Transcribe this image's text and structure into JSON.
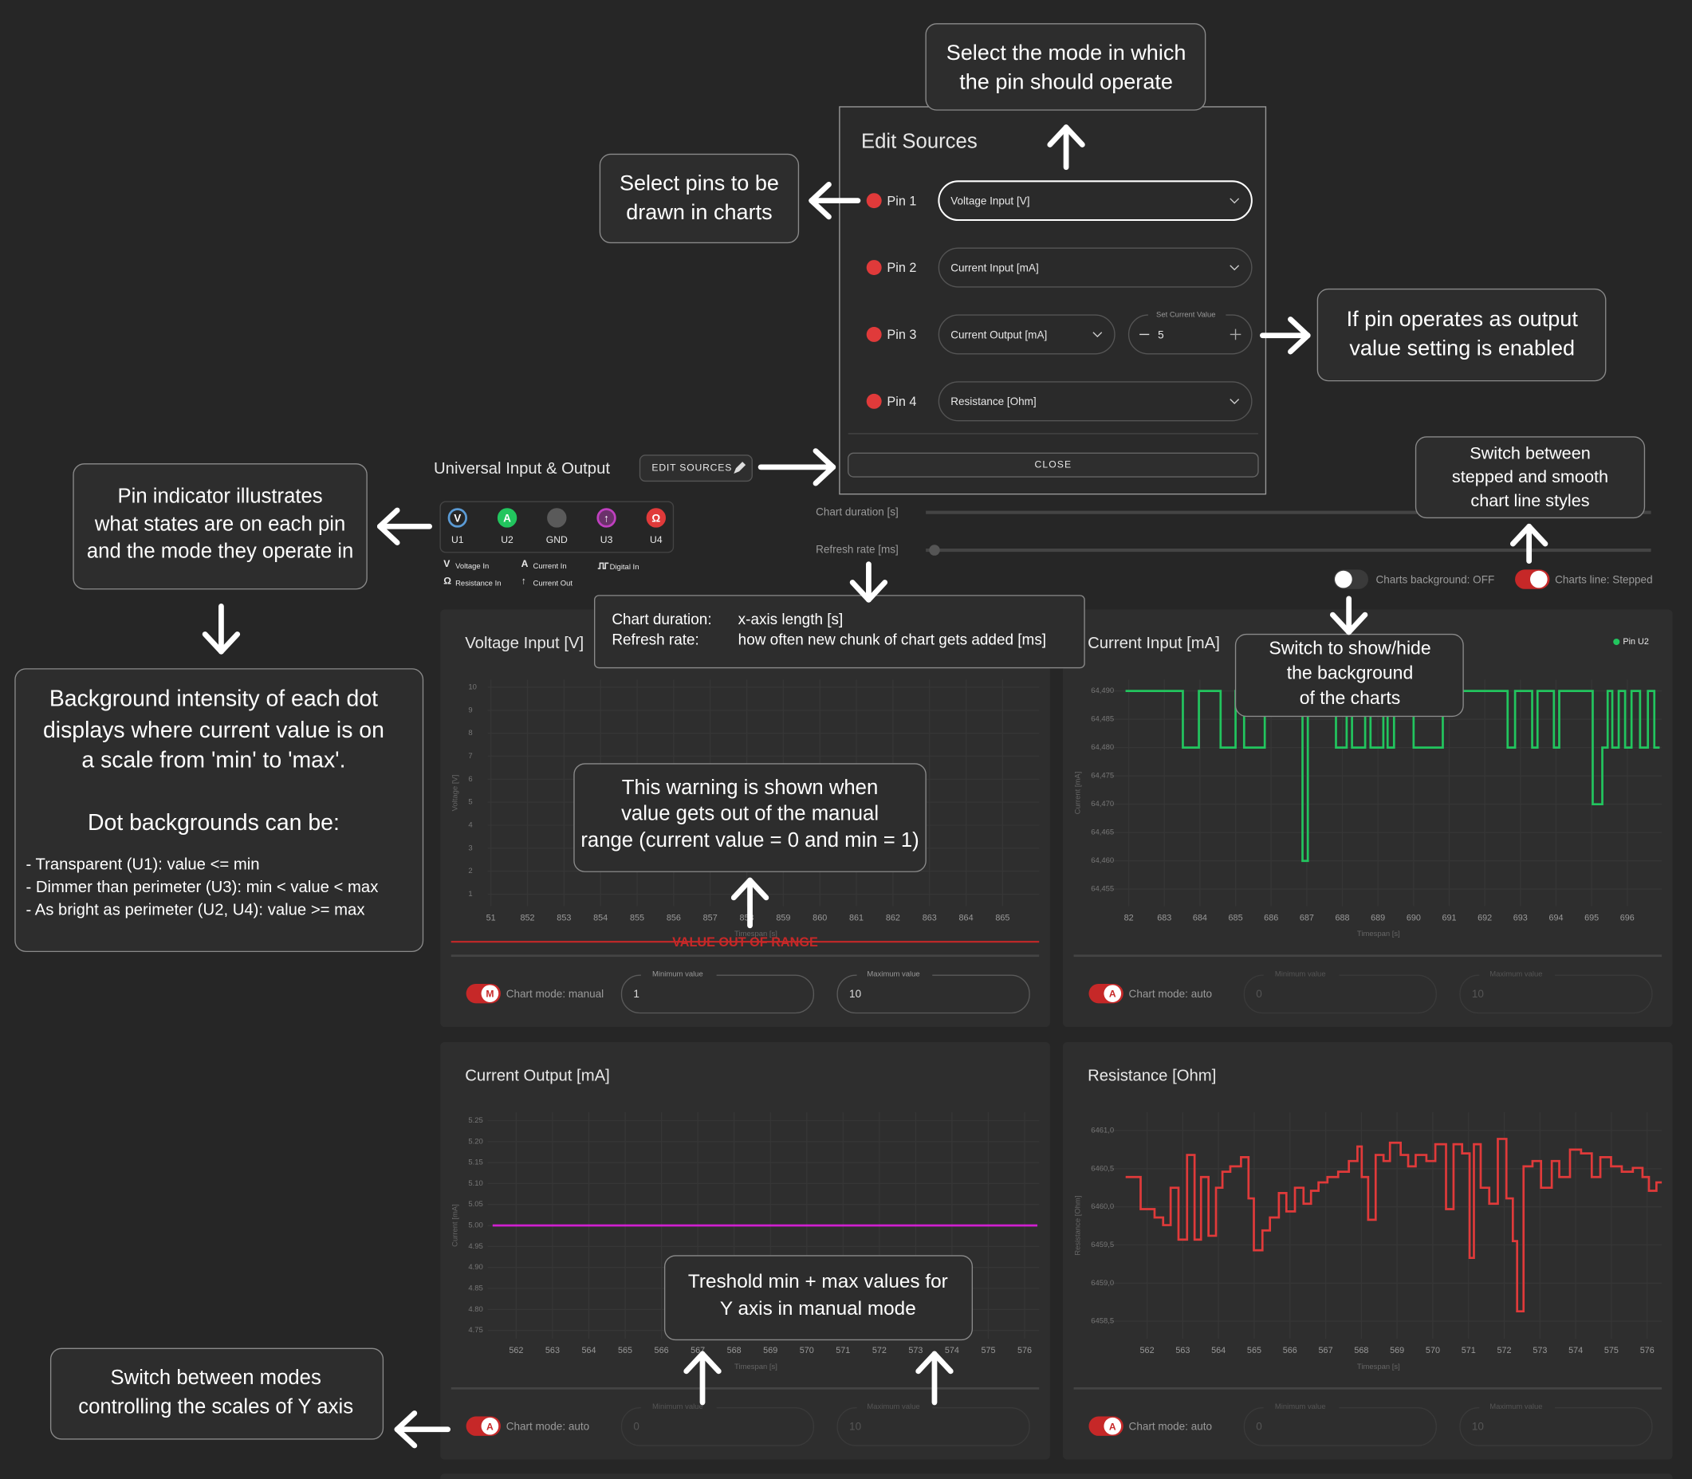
{
  "header": {
    "title": "Universal Input & Output",
    "edit_button": "EDIT SOURCES"
  },
  "edit_sources": {
    "title": "Edit Sources",
    "pins": [
      {
        "label": "Pin 1",
        "mode": "Voltage Input [V]"
      },
      {
        "label": "Pin 2",
        "mode": "Current Input [mA]"
      },
      {
        "label": "Pin 3",
        "mode": "Current Output [mA]"
      },
      {
        "label": "Pin 4",
        "mode": "Resistance [Ohm]"
      }
    ],
    "set_current": {
      "label": "Set Current Value",
      "value": 5
    },
    "close": "CLOSE"
  },
  "pin_indicator": {
    "pins": [
      {
        "symbol": "V",
        "label": "U1",
        "color": "#5b9bd5"
      },
      {
        "symbol": "A",
        "label": "U2",
        "color": "#22c55e"
      },
      {
        "label": "GND",
        "color": "#5a5a5a"
      },
      {
        "symbol": "↑",
        "label": "U3",
        "color": "#c040c0"
      },
      {
        "symbol": "Ω",
        "label": "U4",
        "color": "#e03a3a"
      }
    ],
    "legend": [
      {
        "symbol": "V",
        "label": "Voltage In"
      },
      {
        "symbol": "A",
        "label": "Current In"
      },
      {
        "label": "Digital In"
      },
      {
        "symbol": "Ω",
        "label": "Resistance In"
      },
      {
        "symbol": "↑",
        "label": "Current Out"
      }
    ]
  },
  "controls": {
    "chart_duration": "Chart duration [s]",
    "refresh_rate": "Refresh rate [ms]",
    "charts_background": "Charts background: OFF",
    "charts_line": "Charts line: Stepped"
  },
  "charts": [
    {
      "type": "line",
      "title": "Voltage Input [V]",
      "y_label": "Voltage [V]",
      "x_label": "Timespan [s]",
      "xlim": [
        850.5,
        866
      ],
      "ylim": [
        0.48,
        10.33
      ],
      "xticks": [
        {
          "value": 851,
          "label": "51"
        },
        852,
        853,
        854,
        855,
        856,
        857,
        858,
        859,
        860,
        861,
        862,
        863,
        864,
        865
      ],
      "yticks": [
        1,
        2,
        3,
        4,
        5,
        6,
        7,
        8,
        9,
        10
      ],
      "stepped": true,
      "series": [],
      "warning": "VALUE OUT OF RANGE",
      "mode": {
        "icon": "M",
        "label": "Chart mode: manual"
      },
      "min_field": {
        "label": "Minimum value",
        "value": 1
      },
      "max_field": {
        "label": "Maximum value",
        "value": 10
      }
    },
    {
      "type": "line",
      "title": "Current Input [mA]",
      "y_label": "Current [mA]",
      "x_label": "Timespan [s]",
      "xlim": [
        681.06,
        696.97
      ],
      "ylim": [
        64.452,
        64.492
      ],
      "xticks": [
        {
          "value": 682,
          "label": "82"
        },
        683,
        684,
        685,
        686,
        687,
        688,
        689,
        690,
        691,
        692,
        693,
        694,
        695,
        696
      ],
      "yticks": [
        {
          "value": 64.455,
          "label": "64,455"
        },
        {
          "value": 64.46,
          "label": "64,460"
        },
        {
          "value": 64.465,
          "label": "64,465"
        },
        {
          "value": 64.47,
          "label": "64,470"
        },
        {
          "value": 64.475,
          "label": "64,475"
        },
        {
          "value": 64.48,
          "label": "64,480"
        },
        {
          "value": 64.485,
          "label": "64,485"
        },
        {
          "value": 64.49,
          "label": "64,490"
        }
      ],
      "stepped": true,
      "series": [
        {
          "name": "Pin U2",
          "color": "#22c55e",
          "x": [
            681.91,
            683.52,
            683.97,
            684.58,
            685.0,
            685.24,
            685.82,
            686.88,
            687.03,
            687.82,
            688.12,
            688.27,
            688.64,
            688.79,
            689.15,
            689.27,
            689.45,
            690.0,
            690.82,
            692.64,
            692.85,
            693.33,
            693.48,
            693.94,
            694.09,
            695.03,
            695.3,
            695.45,
            695.58,
            695.76,
            695.94,
            696.12,
            696.36,
            696.58,
            696.76,
            696.91
          ],
          "values": [
            64.49,
            64.48,
            64.49,
            64.48,
            64.49,
            64.48,
            64.49,
            64.46,
            64.49,
            64.48,
            64.49,
            64.48,
            64.49,
            64.48,
            64.49,
            64.48,
            64.49,
            64.48,
            64.49,
            64.48,
            64.49,
            64.48,
            64.49,
            64.48,
            64.49,
            64.47,
            64.48,
            64.49,
            64.48,
            64.49,
            64.48,
            64.49,
            64.48,
            64.49,
            64.48,
            64.48
          ]
        }
      ],
      "mode": {
        "icon": "A",
        "label": "Chart mode: auto"
      },
      "min_field": {
        "label": "Minimum value",
        "value": 0
      },
      "max_field": {
        "label": "Maximum value",
        "value": 10
      }
    },
    {
      "type": "line",
      "title": "Current Output [mA]",
      "y_label": "Current [mA]",
      "x_label": "Timespan [s]",
      "xlim": [
        560.8,
        576.4
      ],
      "ylim": [
        4.73,
        5.27
      ],
      "xticks": [
        562,
        563,
        564,
        565,
        566,
        567,
        568,
        569,
        570,
        571,
        572,
        573,
        574,
        575,
        576
      ],
      "yticks": [
        4.75,
        {
          "value": 4.8,
          "label": "4.80"
        },
        4.85,
        {
          "value": 4.9,
          "label": "4.90"
        },
        4.95,
        {
          "value": 5.0,
          "label": "5.00"
        },
        5.05,
        {
          "value": 5.1,
          "label": "5.10"
        },
        5.15,
        {
          "value": 5.2,
          "label": "5.20"
        },
        5.25
      ],
      "stepped": true,
      "series": [
        {
          "color": "#d020d0",
          "x": [
            561.35,
            576.35
          ],
          "values": [
            5,
            5
          ]
        }
      ],
      "mode": {
        "icon": "A",
        "label": "Chart mode: auto"
      },
      "min_field": {
        "label": "Minimum value",
        "value": 0
      },
      "max_field": {
        "label": "Maximum value",
        "value": 10
      }
    },
    {
      "type": "line",
      "title": "Resistance [Ohm]",
      "y_label": "Resistance [Ohm]",
      "x_label": "Timespan [s]",
      "xlim": [
        560.55,
        576.41
      ],
      "ylim": [
        6458.27,
        6461.24
      ],
      "xticks": [
        562,
        563,
        564,
        565,
        566,
        567,
        568,
        569,
        570,
        571,
        572,
        573,
        574,
        575,
        576
      ],
      "yticks": [
        {
          "value": 6458.5,
          "label": "6458,5"
        },
        {
          "value": 6459,
          "label": "6459,0"
        },
        {
          "value": 6459.5,
          "label": "6459,5"
        },
        {
          "value": 6460,
          "label": "6460,0"
        },
        {
          "value": 6460.5,
          "label": "6460,5"
        },
        {
          "value": 6461,
          "label": "6461,0"
        }
      ],
      "stepped": true,
      "series": [
        {
          "color": "#e03a3a",
          "x": [
            561.4,
            561.82,
            562.21,
            562.45,
            562.66,
            562.88,
            563.12,
            563.33,
            563.51,
            563.72,
            563.93,
            564.11,
            564.33,
            564.63,
            564.84,
            564.99,
            565.23,
            565.44,
            565.69,
            565.9,
            566.14,
            566.38,
            566.59,
            566.8,
            567.05,
            567.35,
            567.65,
            567.89,
            568.01,
            568.19,
            568.4,
            568.62,
            568.8,
            569.1,
            569.31,
            569.52,
            569.82,
            570.07,
            570.37,
            570.58,
            570.82,
            571.03,
            571.15,
            571.34,
            571.58,
            571.82,
            572.06,
            572.24,
            572.36,
            572.54,
            572.79,
            573.03,
            573.33,
            573.54,
            573.84,
            574.15,
            574.45,
            574.69,
            574.99,
            575.29,
            575.6,
            575.87,
            576.05,
            576.26,
            576.41
          ],
          "values": [
            6460.39,
            6459.97,
            6459.86,
            6459.76,
            6460.25,
            6459.57,
            6460.68,
            6459.57,
            6460.39,
            6459.62,
            6460.25,
            6460.46,
            6460.53,
            6460.65,
            6460.11,
            6459.43,
            6459.69,
            6459.86,
            6460.18,
            6459.94,
            6460.25,
            6460.04,
            6460.21,
            6460.32,
            6460.39,
            6460.46,
            6460.6,
            6460.79,
            6460.39,
            6459.83,
            6460.68,
            6460.6,
            6460.84,
            6460.68,
            6460.53,
            6460.68,
            6460.6,
            6460.82,
            6459.97,
            6460.82,
            6460.7,
            6459.33,
            6460.82,
            6460.25,
            6460.04,
            6460.89,
            6460.11,
            6459.55,
            6458.63,
            6460.53,
            6460.6,
            6460.25,
            6460.6,
            6460.39,
            6460.75,
            6460.7,
            6460.39,
            6460.65,
            6460.53,
            6460.46,
            6460.51,
            6460.39,
            6460.21,
            6460.32,
            6460.32
          ]
        }
      ],
      "mode": {
        "icon": "A",
        "label": "Chart mode: auto"
      },
      "min_field": {
        "label": "Minimum value",
        "value": 0
      },
      "max_field": {
        "label": "Maximum value",
        "value": 10
      }
    }
  ],
  "annotations": {
    "mode_select": {
      "lines": [
        "Select the mode in which",
        "the pin should operate"
      ]
    },
    "pin_select": {
      "lines": [
        "Select pins to be",
        "drawn in charts"
      ]
    },
    "output_value": {
      "lines": [
        "If pin operates as output",
        "value setting is enabled"
      ]
    },
    "line_style": {
      "lines": [
        "Switch between",
        "stepped and smooth",
        "chart line styles"
      ]
    },
    "pin_indicator": {
      "lines": [
        "Pin indicator illustrates",
        "what states are on each pin",
        "and the mode they operate in"
      ]
    },
    "dot_background": {
      "lines": [
        "Background intensity of each dot",
        "displays where current value is on",
        "a scale from 'min' to 'max'."
      ],
      "subtitle": "Dot backgrounds can be:",
      "bullets": [
        "- Transparent (U1): value <= min",
        "- Dimmer than perimeter (U3): min < value < max",
        "- As bright as perimeter (U2, U4): value >= max"
      ]
    },
    "background_switch": {
      "lines": [
        "Switch to show/hide",
        "the background",
        "of the charts"
      ]
    },
    "warning": {
      "lines": [
        "This warning is shown when",
        "value gets out of the manual",
        "range (current value = 0 and min = 1)"
      ]
    },
    "threshold": {
      "lines": [
        "Treshold min + max values for",
        "Y axis in manual mode"
      ]
    },
    "mode_switch": {
      "lines": [
        "Switch between modes",
        "controlling the scales of Y axis"
      ]
    },
    "tooltip": {
      "rows": [
        [
          "Chart duration:",
          "x-axis length [s]"
        ],
        [
          "Refresh rate:",
          "how often new chunk of chart gets added [ms]"
        ]
      ]
    }
  }
}
